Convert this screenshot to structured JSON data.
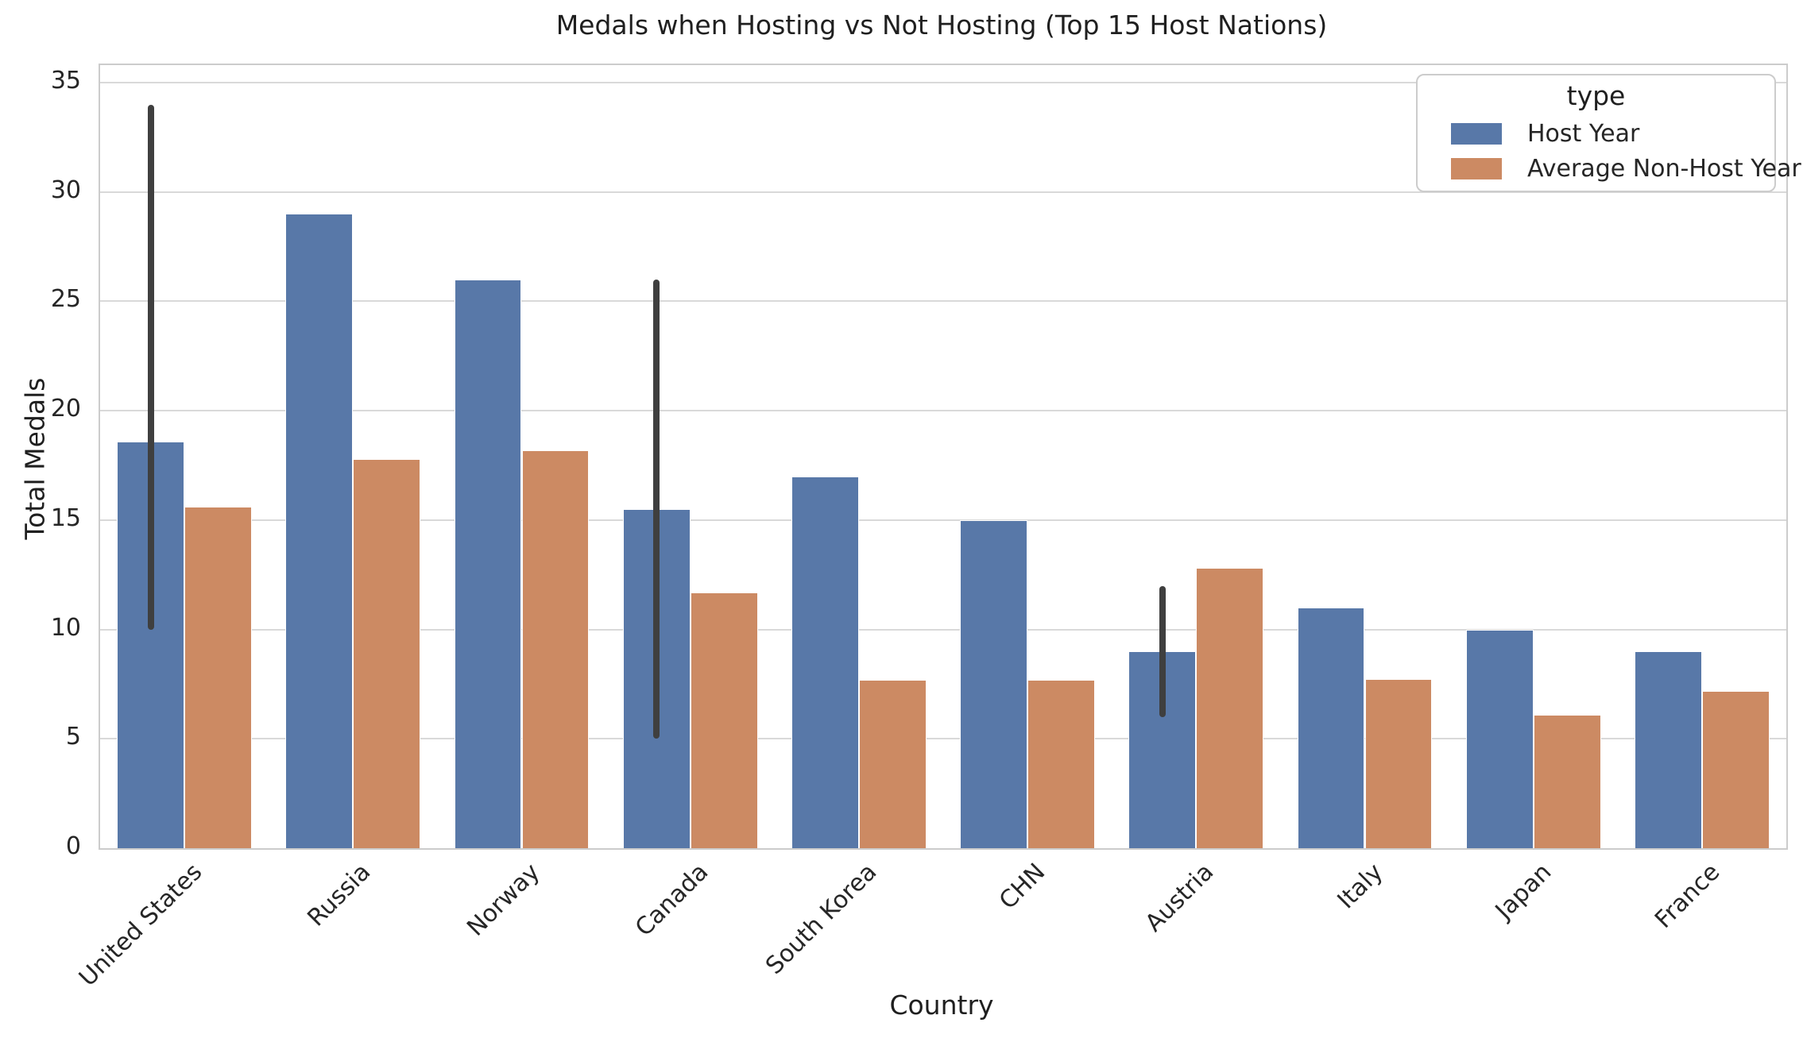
{
  "chart_data": {
    "type": "bar",
    "title": "Medals when Hosting vs Not Hosting (Top 15 Host Nations)",
    "xlabel": "Country",
    "ylabel": "Total Medals",
    "categories": [
      "United States",
      "Russia",
      "Norway",
      "Canada",
      "South Korea",
      "CHN",
      "Austria",
      "Italy",
      "Japan",
      "France"
    ],
    "series": [
      {
        "name": "Host Year",
        "color": "#5878a8",
        "values": [
          18.6,
          29,
          26,
          15.5,
          17,
          15,
          9,
          11,
          10,
          9
        ],
        "error_bars": [
          [
            10,
            34
          ],
          null,
          null,
          [
            5,
            26
          ],
          null,
          null,
          [
            6,
            12
          ],
          null,
          null,
          null
        ]
      },
      {
        "name": "Average Non-Host Year",
        "color": "#cc8a63",
        "values": [
          15.6,
          17.8,
          18.2,
          11.7,
          7.7,
          7.7,
          12.8,
          7.75,
          6.1,
          7.2
        ],
        "error_bars": [
          null,
          null,
          null,
          null,
          null,
          null,
          null,
          null,
          null,
          null
        ]
      }
    ],
    "yticks": [
      0,
      5,
      10,
      15,
      20,
      25,
      30,
      35
    ],
    "ylim": [
      0,
      35.8
    ],
    "grid": true,
    "grid_color": "#d9d9d9",
    "spine_color": "#cccccc",
    "error_bar_color": "#3f3f3f",
    "legend": {
      "title": "type",
      "position": "upper right",
      "entries": [
        {
          "label": "Host Year",
          "color": "#5878a8"
        },
        {
          "label": "Average Non-Host Year",
          "color": "#cc8a63"
        }
      ]
    }
  }
}
